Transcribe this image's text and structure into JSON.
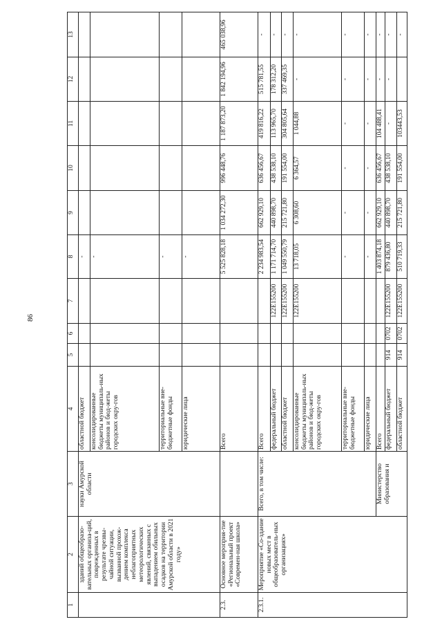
{
  "page_number": "86",
  "header": [
    "1",
    "2",
    "3",
    "4",
    "5",
    "6",
    "7",
    "8",
    "9",
    "10",
    "11",
    "12",
    "13"
  ],
  "blocks": [
    {
      "num": "",
      "name": "зданий общеобразо-вательных организа-ций, поврежденных в результате чрезвы-чайной ситуации, вызванной прохож-дением комплекса неблагоприятных метеорологических явлений, связанных с выпадением обильных осадков на территории Амурской области в 2021 году»",
      "executors": [
        {
          "label": "науки Амурской области",
          "rows": [
            {
              "source": "областной бюджет",
              "values": [
                "",
                "",
                "",
                "-",
                "",
                "",
                "",
                "",
                ""
              ]
            },
            {
              "source": "консолидированные бюджеты муниципаль-ных районов и бюд-жеты городских окру-гов",
              "values": [
                "",
                "",
                "",
                "-",
                "",
                "",
                "",
                "",
                ""
              ]
            },
            {
              "source": "территориальные вне-бюджетные фонды",
              "values": [
                "",
                "",
                "",
                "-",
                "",
                "",
                "",
                "",
                ""
              ]
            },
            {
              "source": "юридические лица",
              "values": [
                "",
                "",
                "",
                "-",
                "",
                "",
                "",
                "",
                ""
              ]
            }
          ]
        }
      ]
    },
    {
      "num": "2.3.",
      "name": "Основное мероприя-тие «Региональный проект «Современ-ная школа»",
      "executors": [
        {
          "label": "",
          "rows": [
            {
              "source": "Всего",
              "values": [
                "",
                "",
                "",
                "5 525 828,18",
                "1 034 272,30",
                "996 448,76",
                "1 187 873,20",
                "1 842 194,96",
                "465 038,96"
              ]
            }
          ]
        }
      ]
    },
    {
      "num": "2.3.1.",
      "name": "Мероприятие «Со-здание новых мест в общеобразователь-ных организациях»",
      "executors": [
        {
          "label": "Всего, в том числе:",
          "rows": [
            {
              "source": "Всего",
              "values": [
                "",
                "",
                "",
                "2 234 983,54",
                "662 929,10",
                "636 456,67",
                "419 816,22",
                "515 781,55",
                "-"
              ]
            },
            {
              "source": "федеральный бюджет",
              "values": [
                "",
                "",
                "122E155200",
                "1 171 714,70",
                "440 898,70",
                "438 538,10",
                "113 965,70",
                "178 312,20",
                "-"
              ]
            },
            {
              "source": "областной бюджет",
              "values": [
                "",
                "",
                "122E155200",
                "1 049 550,79",
                "215 721,80",
                "191 554,00",
                "304 805,64",
                "337 469,35",
                "-"
              ]
            },
            {
              "source": "консолидированные бюджеты муниципаль-ных районов и бюд-жеты городских окру-гов",
              "values": [
                "",
                "",
                "122E155200",
                "13 718,05",
                "6 308,60",
                "6 364,57",
                "1 044,88",
                "-",
                "-"
              ]
            },
            {
              "source": "территориальные вне-бюджетные фонды",
              "values": [
                "",
                "",
                "",
                "-",
                "-",
                "-",
                "-",
                "-",
                "-"
              ]
            },
            {
              "source": "юридические лица",
              "values": [
                "",
                "",
                "",
                "-",
                "-",
                "-",
                "-",
                "-",
                "-"
              ]
            }
          ]
        },
        {
          "label": "Министерство образования и",
          "rows": [
            {
              "source": "Всего",
              "values": [
                "",
                "",
                "",
                "1 403 874,18",
                "662 929,10",
                "636 456,67",
                "104 488,41",
                "-",
                "-"
              ]
            },
            {
              "source": "федеральный бюджет",
              "values": [
                "914",
                "0702",
                "122E155200",
                "879 436,80",
                "440 898,70",
                "438 538,10",
                "-",
                "-",
                "-"
              ]
            },
            {
              "source": "областной бюджет",
              "values": [
                "914",
                "0702",
                "122E155200",
                "510 719,33",
                "215 721,80",
                "191 554,00",
                "103443,53",
                "",
                "-"
              ]
            }
          ]
        }
      ]
    }
  ]
}
